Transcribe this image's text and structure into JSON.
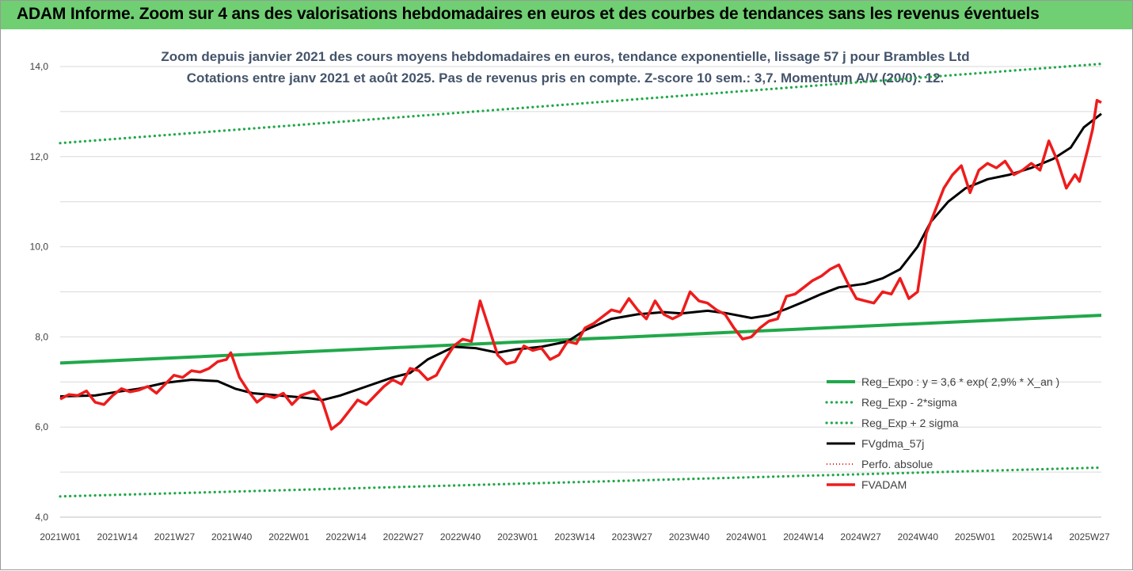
{
  "banner": {
    "title": "ADAM Informe. Zoom sur 4 ans des valorisations hebdomadaires en euros et des courbes de tendances sans les revenus éventuels"
  },
  "chart_data": {
    "type": "line",
    "title": "Zoom depuis janvier 2021 des cours moyens hebdomadaires en euros, tendance exponentielle, lissage 57 j pour Brambles Ltd",
    "subtitle": "Cotations entre janv 2021 et août 2025.  Pas de revenus pris en compte. Z-score 10 sem.: 3,7. Momentum A/V (20/0): 12.",
    "xlabel": "",
    "ylabel": "",
    "ylim": [
      4.0,
      14.0
    ],
    "yticks": [
      "4,0",
      "6,0",
      "8,0",
      "10,0",
      "12,0",
      "14,0"
    ],
    "grid": true,
    "legend_position": "right",
    "x_tick_labels": [
      "2021W01",
      "2021W14",
      "2021W27",
      "2021W40",
      "2022W01",
      "2022W14",
      "2022W27",
      "2022W40",
      "2023W01",
      "2023W14",
      "2023W27",
      "2023W40",
      "2024W01",
      "2024W14",
      "2024W27",
      "2024W40",
      "2025W01",
      "2025W14",
      "2025W27"
    ],
    "x_range_weeks": [
      0,
      238
    ],
    "colors": {
      "green": "#21a84a",
      "black": "#000000",
      "red": "#ee1c1c",
      "gridline": "#d9d9d9"
    },
    "series": [
      {
        "name": "Reg_Expo : y = 3,6 * exp( 2,9% *  X_an )",
        "style": "solid-green",
        "points": [
          [
            0,
            7.42
          ],
          [
            238,
            8.48
          ]
        ]
      },
      {
        "name": "Reg_Exp - 2*sigma",
        "style": "dotted-green",
        "points": [
          [
            0,
            4.46
          ],
          [
            238,
            5.1
          ]
        ]
      },
      {
        "name": "Reg_Exp + 2 sigma",
        "style": "dotted-green",
        "points": [
          [
            0,
            12.3
          ],
          [
            238,
            14.06
          ]
        ]
      },
      {
        "name": "FVgdma_57j",
        "style": "solid-black",
        "points": [
          [
            0,
            6.68
          ],
          [
            8,
            6.7
          ],
          [
            13,
            6.78
          ],
          [
            18,
            6.85
          ],
          [
            24,
            6.98
          ],
          [
            30,
            7.05
          ],
          [
            36,
            7.02
          ],
          [
            40,
            6.85
          ],
          [
            44,
            6.75
          ],
          [
            50,
            6.7
          ],
          [
            56,
            6.65
          ],
          [
            60,
            6.6
          ],
          [
            64,
            6.7
          ],
          [
            70,
            6.9
          ],
          [
            76,
            7.1
          ],
          [
            80,
            7.2
          ],
          [
            84,
            7.5
          ],
          [
            90,
            7.78
          ],
          [
            95,
            7.75
          ],
          [
            100,
            7.65
          ],
          [
            104,
            7.72
          ],
          [
            110,
            7.78
          ],
          [
            116,
            7.9
          ],
          [
            120,
            8.15
          ],
          [
            126,
            8.4
          ],
          [
            132,
            8.5
          ],
          [
            138,
            8.55
          ],
          [
            142,
            8.52
          ],
          [
            148,
            8.58
          ],
          [
            152,
            8.53
          ],
          [
            158,
            8.42
          ],
          [
            162,
            8.48
          ],
          [
            166,
            8.62
          ],
          [
            170,
            8.78
          ],
          [
            174,
            8.95
          ],
          [
            178,
            9.1
          ],
          [
            184,
            9.18
          ],
          [
            188,
            9.3
          ],
          [
            192,
            9.5
          ],
          [
            196,
            10.0
          ],
          [
            199,
            10.55
          ],
          [
            203,
            11.0
          ],
          [
            207,
            11.3
          ],
          [
            212,
            11.5
          ],
          [
            217,
            11.6
          ],
          [
            222,
            11.75
          ],
          [
            227,
            11.95
          ],
          [
            231,
            12.2
          ],
          [
            234,
            12.65
          ],
          [
            238,
            12.95
          ]
        ]
      },
      {
        "name": "Perfo. absolue",
        "style": "dotted-red",
        "points": []
      },
      {
        "name": "FVADAM",
        "style": "solid-red",
        "points": [
          [
            0,
            6.62
          ],
          [
            2,
            6.72
          ],
          [
            4,
            6.7
          ],
          [
            6,
            6.8
          ],
          [
            8,
            6.55
          ],
          [
            10,
            6.5
          ],
          [
            12,
            6.7
          ],
          [
            14,
            6.85
          ],
          [
            16,
            6.78
          ],
          [
            18,
            6.82
          ],
          [
            20,
            6.9
          ],
          [
            22,
            6.75
          ],
          [
            24,
            6.95
          ],
          [
            26,
            7.15
          ],
          [
            28,
            7.1
          ],
          [
            30,
            7.25
          ],
          [
            32,
            7.22
          ],
          [
            34,
            7.3
          ],
          [
            36,
            7.45
          ],
          [
            38,
            7.5
          ],
          [
            39,
            7.65
          ],
          [
            41,
            7.1
          ],
          [
            43,
            6.8
          ],
          [
            45,
            6.55
          ],
          [
            47,
            6.7
          ],
          [
            49,
            6.65
          ],
          [
            51,
            6.75
          ],
          [
            53,
            6.5
          ],
          [
            55,
            6.7
          ],
          [
            58,
            6.8
          ],
          [
            60,
            6.55
          ],
          [
            62,
            5.95
          ],
          [
            64,
            6.1
          ],
          [
            66,
            6.35
          ],
          [
            68,
            6.6
          ],
          [
            70,
            6.5
          ],
          [
            72,
            6.7
          ],
          [
            74,
            6.9
          ],
          [
            76,
            7.05
          ],
          [
            78,
            6.95
          ],
          [
            80,
            7.3
          ],
          [
            82,
            7.25
          ],
          [
            84,
            7.05
          ],
          [
            86,
            7.15
          ],
          [
            88,
            7.5
          ],
          [
            90,
            7.8
          ],
          [
            92,
            7.95
          ],
          [
            94,
            7.9
          ],
          [
            96,
            8.8
          ],
          [
            98,
            8.2
          ],
          [
            100,
            7.6
          ],
          [
            102,
            7.4
          ],
          [
            104,
            7.45
          ],
          [
            106,
            7.8
          ],
          [
            108,
            7.7
          ],
          [
            110,
            7.75
          ],
          [
            112,
            7.5
          ],
          [
            114,
            7.6
          ],
          [
            116,
            7.9
          ],
          [
            118,
            7.85
          ],
          [
            120,
            8.2
          ],
          [
            122,
            8.3
          ],
          [
            124,
            8.45
          ],
          [
            126,
            8.6
          ],
          [
            128,
            8.55
          ],
          [
            130,
            8.85
          ],
          [
            132,
            8.6
          ],
          [
            134,
            8.4
          ],
          [
            136,
            8.8
          ],
          [
            138,
            8.5
          ],
          [
            140,
            8.4
          ],
          [
            142,
            8.5
          ],
          [
            144,
            9.0
          ],
          [
            146,
            8.8
          ],
          [
            148,
            8.75
          ],
          [
            150,
            8.6
          ],
          [
            152,
            8.5
          ],
          [
            154,
            8.2
          ],
          [
            156,
            7.95
          ],
          [
            158,
            8.0
          ],
          [
            160,
            8.2
          ],
          [
            162,
            8.35
          ],
          [
            164,
            8.4
          ],
          [
            166,
            8.9
          ],
          [
            168,
            8.95
          ],
          [
            170,
            9.1
          ],
          [
            172,
            9.25
          ],
          [
            174,
            9.35
          ],
          [
            176,
            9.5
          ],
          [
            178,
            9.6
          ],
          [
            180,
            9.2
          ],
          [
            182,
            8.85
          ],
          [
            184,
            8.8
          ],
          [
            186,
            8.75
          ],
          [
            188,
            9.0
          ],
          [
            190,
            8.95
          ],
          [
            192,
            9.3
          ],
          [
            194,
            8.85
          ],
          [
            196,
            9.0
          ],
          [
            198,
            10.3
          ],
          [
            200,
            10.8
          ],
          [
            202,
            11.3
          ],
          [
            204,
            11.6
          ],
          [
            206,
            11.8
          ],
          [
            208,
            11.2
          ],
          [
            210,
            11.7
          ],
          [
            212,
            11.85
          ],
          [
            214,
            11.75
          ],
          [
            216,
            11.9
          ],
          [
            218,
            11.6
          ],
          [
            220,
            11.7
          ],
          [
            222,
            11.85
          ],
          [
            224,
            11.7
          ],
          [
            226,
            12.35
          ],
          [
            228,
            11.9
          ],
          [
            230,
            11.3
          ],
          [
            232,
            11.6
          ],
          [
            233,
            11.45
          ],
          [
            235,
            12.2
          ],
          [
            236,
            12.6
          ],
          [
            237,
            13.25
          ],
          [
            238,
            13.2
          ]
        ]
      }
    ]
  }
}
